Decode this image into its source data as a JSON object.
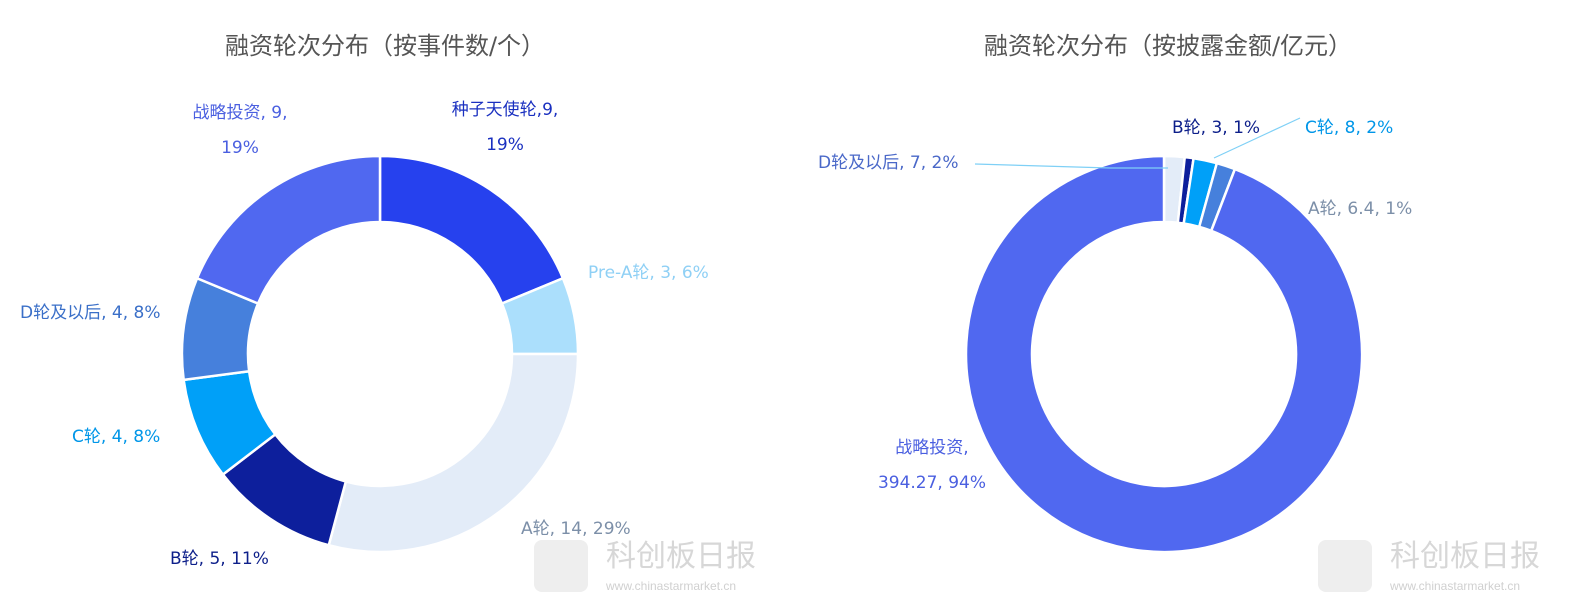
{
  "watermark": {
    "name": "科创板日报",
    "url": "www.chinastarmarket.cn"
  },
  "chart_data": [
    {
      "type": "pie",
      "donut": true,
      "title": "融资轮次分布（按事件数/个）",
      "slices": [
        {
          "name": "种子天使轮",
          "value": 9,
          "percent": "19%",
          "label_line1": "种子天使轮,9,",
          "label_line2": "19%",
          "color": "#2641ee",
          "label_color": "#1a30c0"
        },
        {
          "name": "Pre-A轮",
          "value": 3,
          "percent": "6%",
          "label_line1": "Pre-A轮, 3, 6%",
          "label_line2": "",
          "color": "#abdffc",
          "label_color": "#8fd0f5"
        },
        {
          "name": "A轮",
          "value": 14,
          "percent": "29%",
          "label_line1": "A轮, 14, 29%",
          "label_line2": "",
          "color": "#e3ecf8",
          "label_color": "#7c8fa8"
        },
        {
          "name": "B轮",
          "value": 5,
          "percent": "11%",
          "label_line1": "B轮, 5, 11%",
          "label_line2": "",
          "color": "#0d1f9c",
          "label_color": "#0d1f8a"
        },
        {
          "name": "C轮",
          "value": 4,
          "percent": "8%",
          "label_line1": "C轮, 4, 8%",
          "label_line2": "",
          "color": "#00a0f8",
          "label_color": "#0096e8"
        },
        {
          "name": "D轮及以后",
          "value": 4,
          "percent": "8%",
          "label_line1": "D轮及以后, 4, 8%",
          "label_line2": "",
          "color": "#4680dc",
          "label_color": "#3a6fc8"
        },
        {
          "name": "战略投资",
          "value": 9,
          "percent": "19%",
          "label_line1": "战略投资, 9,",
          "label_line2": "19%",
          "color": "#5068f0",
          "label_color": "#4a5fe0"
        }
      ]
    },
    {
      "type": "pie",
      "donut": true,
      "title": "融资轮次分布（按披露金额/亿元）",
      "slices": [
        {
          "name": "D轮及以后",
          "value": 7,
          "percent": "2%",
          "label_line1": "D轮及以后, 7, 2%",
          "label_line2": "",
          "color": "#e3ecf8",
          "label_color": "#4a68c8"
        },
        {
          "name": "B轮",
          "value": 3,
          "percent": "1%",
          "label_line1": "B轮, 3, 1%",
          "label_line2": "",
          "color": "#0d1f9c",
          "label_color": "#0d1f8a"
        },
        {
          "name": "C轮",
          "value": 8,
          "percent": "2%",
          "label_line1": "C轮, 8, 2%",
          "label_line2": "",
          "color": "#00a0f8",
          "label_color": "#0096e8"
        },
        {
          "name": "A轮",
          "value": 6.4,
          "percent": "1%",
          "label_line1": "A轮, 6.4, 1%",
          "label_line2": "",
          "color": "#4680dc",
          "label_color": "#7c8fa8"
        },
        {
          "name": "战略投资",
          "value": 394.27,
          "percent": "94%",
          "label_line1": "战略投资,",
          "label_line2": "394.27, 94%",
          "color": "#5068f0",
          "label_color": "#4a5fe0"
        }
      ]
    }
  ]
}
